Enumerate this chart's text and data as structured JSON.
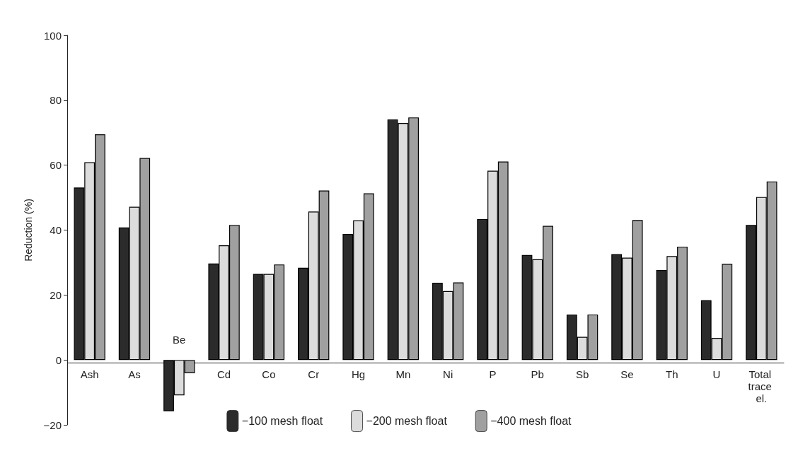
{
  "chart_data": {
    "type": "bar",
    "ylabel": "Reduction (%)",
    "categories": [
      "Ash",
      "As",
      "Be",
      "Cd",
      "Co",
      "Cr",
      "Hg",
      "Mn",
      "Ni",
      "P",
      "Pb",
      "Sb",
      "Se",
      "Th",
      "U",
      "Total trace el."
    ],
    "series": [
      {
        "name": "−100 mesh float",
        "color": "#2b2b2b",
        "values": [
          53.1,
          40.8,
          -15.8,
          29.7,
          26.5,
          28.4,
          38.8,
          74.1,
          23.8,
          43.4,
          32.3,
          14.0,
          32.6,
          27.7,
          18.4,
          41.6
        ]
      },
      {
        "name": "−200 mesh float",
        "color": "#dcdcdc",
        "values": [
          60.9,
          47.2,
          -10.9,
          35.3,
          26.5,
          45.7,
          43.0,
          73.0,
          21.2,
          58.3,
          31.0,
          7.1,
          31.5,
          32.0,
          6.8,
          50.2
        ]
      },
      {
        "name": "−400 mesh float",
        "color": "#a0a0a0",
        "values": [
          69.5,
          62.2,
          -4.1,
          41.6,
          29.4,
          52.2,
          51.3,
          74.7,
          23.9,
          61.1,
          41.3,
          14.0,
          43.1,
          34.9,
          29.6,
          55.0
        ]
      }
    ],
    "ylim": [
      -20,
      100
    ],
    "yticks": [
      {
        "value": -20,
        "label": "−20"
      },
      0,
      20,
      40,
      60,
      80,
      100
    ],
    "grid": false,
    "legend": "bottom"
  }
}
